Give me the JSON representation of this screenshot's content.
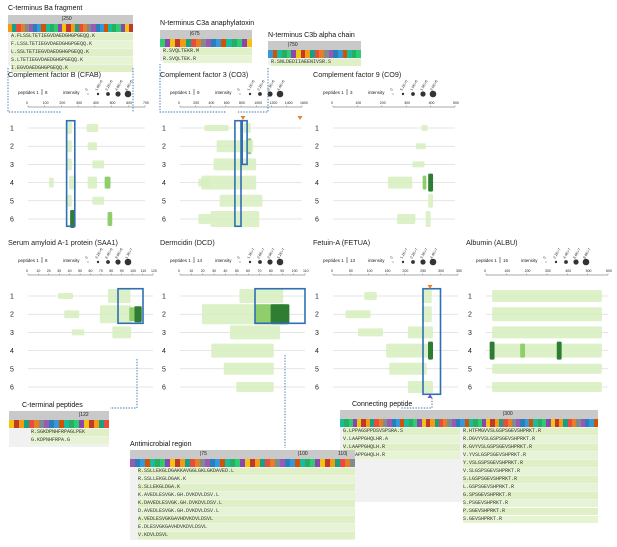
{
  "colors": {
    "light_green": "#d7efc0",
    "mid_green": "#8fce6b",
    "dark_green": "#2e7d32",
    "highlight_blue": "#2f6fb3",
    "orange_arrow": "#e8832a",
    "purple_arrow": "#7b4fc9",
    "popup_bg": "#f1f1f1"
  },
  "popups": {
    "ba": {
      "title": "C-terminus Ba fragment",
      "ruler": "|250",
      "peptides": [
        "A.FLSSLTETIEGVDAEDGHGPGEQQ.K",
        "F.LSSLTETIEGVDAEDGHGPGEQQ.K",
        "L.SSLTETIEGVDAEDGHGPGEQQ.K",
        "S.LTETIEGVDAEDGHGPGEQQ.K",
        "I.EGVDAEDGHGPGEQQ.K"
      ]
    },
    "c3a": {
      "title": "N-terminus  C3a anaphylatoxin",
      "ruler": "|675",
      "peptides": [
        "R.SVQLTEKR.M",
        "R.SVQLTEK.R"
      ]
    },
    "c3b": {
      "title": "N-terminus  C3b alpha chain",
      "ruler": "|750",
      "peptides": [
        "R.SNLDEDIIAEENIVSR.S"
      ]
    },
    "cterm": {
      "title": "C-terminal peptides",
      "ruler": "|122",
      "peptides": [
        "R.SGKDPNHFRPAGLPEK",
        "G.KDPNHFRPA.G"
      ]
    },
    "antimicrobial": {
      "title": "Antimicrobial region",
      "ruler_a": "|75",
      "ruler_b": "|100",
      "ruler_c": "110|",
      "peptides": [
        "R.SSLLEKGLDGAKKAVGGLGKLGKDAVED.L",
        "R.SSLLEKGLDGAK.K",
        "S.SLLEKGLDGA.K",
        "K.AVEDLESVGK.GH.DVKDVLDSV.L",
        "K.DAVEDLESVGK.GH.DVKDVLDSV.L",
        "D.AVEDLESVGK.GH.DVKDVLDSV.L",
        "A.VEDLESVGKGAVHDVKDVLDSVL",
        "E.DLESVGKGAVHDVKDVLDSVL",
        "V.KDVLDSVL"
      ]
    },
    "connecting": {
      "title": "Connecting peptide",
      "ruler": "|300",
      "peptides": [
        "G.LPPAGSPPDSVSPSRA.S",
        "V.LAAPPGHQLHR.A",
        "V.LAAPPGHQLH.R",
        "V.LAAPPGHQLH.R"
      ],
      "peptides_right": [
        "R.HTFMGVVSLGSPSGEVSHPRKT.R",
        "R.DGVYVSLGSPSGEVSHPRKT.R",
        "R.GVYVSLGSPSGEVSHPRKT.R",
        "V.YVSLGSPSGEVSHPRKT.R",
        "Y.VSLGSPSGEVSHPRKT.R",
        "V.SLGSPSGEVSHPRKT.R",
        "S.LGSPSGEVSHPRKT.R",
        "L.GSPSGEVSHPRKT.R",
        "G.SPSGEVSHPRKT.R",
        "S.PSGEVSHPRKT.R",
        "P.SGEVSHPRKT.R",
        "S.GEVSHPRKT.R"
      ]
    }
  },
  "panels": [
    {
      "id": "cfab",
      "title": "Complement factor B (CFAB)",
      "peptides_label": "peptides 1",
      "peptides_max": "8",
      "intensity_label": "intensity",
      "intensity_ticks": [
        "0",
        "1.6E+6",
        "3.2E+6",
        "4.8E+6",
        "6.4E+6"
      ],
      "axis_ticks": [
        "0",
        "100",
        "200",
        "300",
        "400",
        "500",
        "600",
        "700"
      ],
      "rows": [
        "1",
        "2",
        "3",
        "4",
        "5",
        "6"
      ]
    },
    {
      "id": "co3",
      "title": "Complement factor 3 (CO3)",
      "peptides_label": "peptides 1",
      "peptides_max": "9",
      "intensity_label": "intensity",
      "intensity_ticks": [
        "0",
        "1.1E+6",
        "2.2E+6",
        "3.3E+6",
        "4.4E+6"
      ],
      "axis_ticks": [
        "0",
        "200",
        "400",
        "600",
        "800",
        "1000",
        "1200",
        "1400",
        "1600"
      ],
      "rows": [
        "1",
        "2",
        "3",
        "4",
        "5",
        "6"
      ]
    },
    {
      "id": "co9",
      "title": "Complement factor 9 (CO9)",
      "peptides_label": "peptides 1",
      "peptides_max": "3",
      "intensity_label": "intensity",
      "intensity_ticks": [
        "0",
        "5.1E+5",
        "1.0E+6",
        "1.5E+6",
        "2.0E+6"
      ],
      "axis_ticks": [
        "0",
        "100",
        "200",
        "300",
        "400",
        "500"
      ],
      "rows": [
        "1",
        "2",
        "3",
        "4",
        "5",
        "6"
      ]
    },
    {
      "id": "saa1",
      "title": "Serum amyloid A-1 protein (SAA1)",
      "peptides_label": "peptides 1",
      "peptides_max": "8",
      "intensity_label": "intensity",
      "intensity_ticks": [
        "0",
        "3.2E+6",
        "6.4E+6",
        "9.6E+6",
        "1.3E+7"
      ],
      "axis_ticks": [
        "0",
        "10",
        "20",
        "30",
        "40",
        "50",
        "60",
        "70",
        "80",
        "90",
        "100",
        "110",
        "120"
      ],
      "rows": [
        "1",
        "2",
        "3",
        "4",
        "5",
        "6"
      ]
    },
    {
      "id": "dcd",
      "title": "Dermcidin (DCD)",
      "peptides_label": "peptides 1",
      "peptides_max": "14",
      "intensity_label": "intensity",
      "intensity_ticks": [
        "0",
        "1.3E+7",
        "2.6E+7",
        "3.9E+7",
        "5.2E+7"
      ],
      "axis_ticks": [
        "0",
        "10",
        "20",
        "30",
        "40",
        "50",
        "60",
        "70",
        "80",
        "90",
        "100",
        "110"
      ],
      "rows": [
        "1",
        "2",
        "3",
        "4",
        "5",
        "6"
      ]
    },
    {
      "id": "fetua",
      "title": "Fetuin-A (FETUA)",
      "peptides_label": "peptides 1",
      "peptides_max": "13",
      "intensity_label": "intensity",
      "intensity_ticks": [
        "0",
        "1.1E+7",
        "2.2E+7",
        "3.3E+7",
        "4.4E+7"
      ],
      "axis_ticks": [
        "0",
        "50",
        "100",
        "150",
        "200",
        "250",
        "300",
        "350"
      ],
      "rows": [
        "1",
        "2",
        "3",
        "4",
        "5",
        "6"
      ]
    },
    {
      "id": "albu",
      "title": "Albumin (ALBU)",
      "peptides_label": "peptides 1",
      "peptides_max": "15",
      "intensity_label": "intensity",
      "intensity_ticks": [
        "0",
        "2.2E+7",
        "4.4E+7",
        "6.6E+7",
        "8.8E+7"
      ],
      "axis_ticks": [
        "0",
        "100",
        "200",
        "300",
        "400",
        "500",
        "600"
      ],
      "rows": [
        "1",
        "2",
        "3",
        "4",
        "5",
        "6"
      ]
    }
  ]
}
